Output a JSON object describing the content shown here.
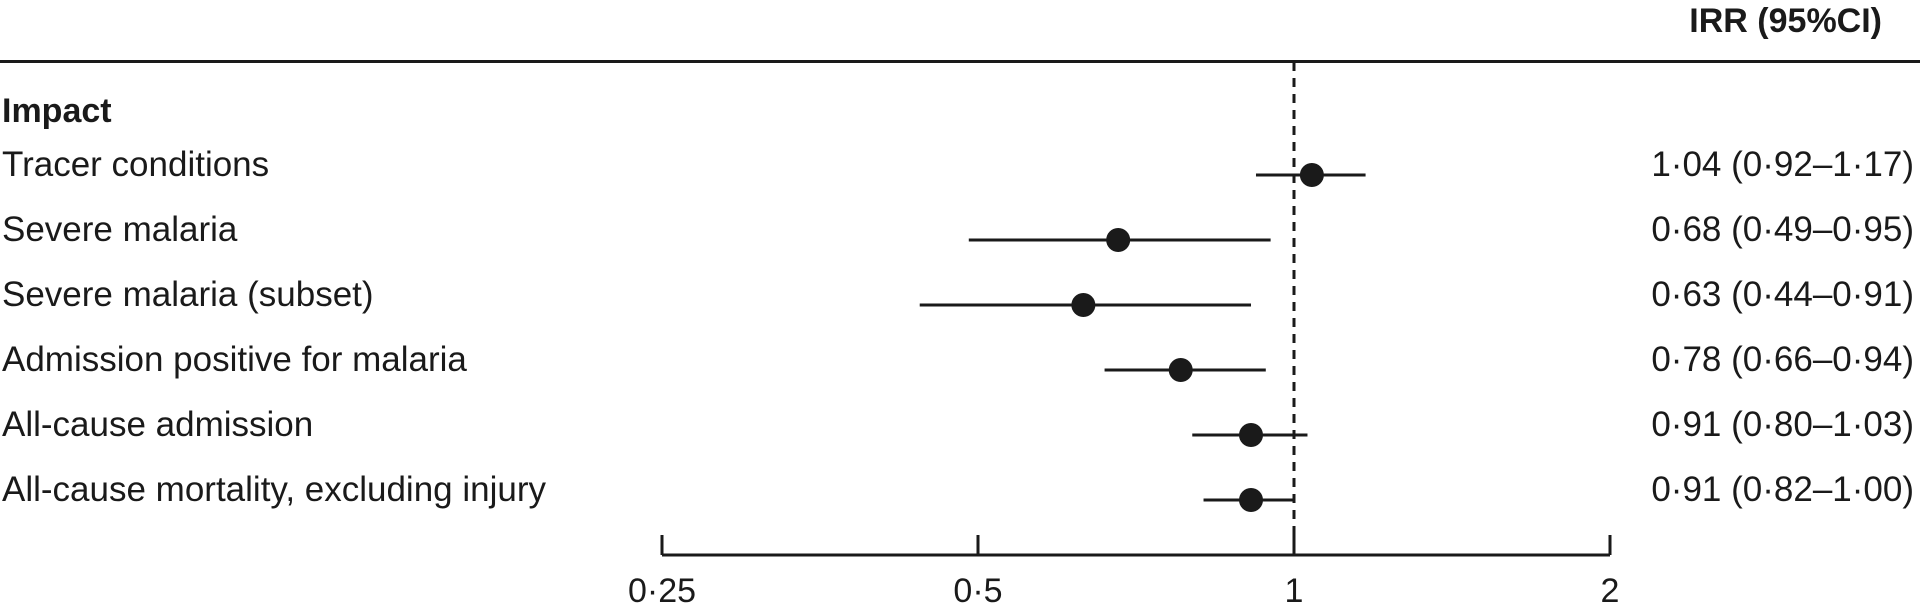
{
  "header": {
    "ci_column": "IRR (95%CI)"
  },
  "section_label": "Impact",
  "chart_data": {
    "type": "forest",
    "scale": "log",
    "reference_line": 1,
    "xlim": [
      0.25,
      2
    ],
    "ticks": [
      {
        "value": 0.25,
        "label": "0·25"
      },
      {
        "value": 0.5,
        "label": "0·5"
      },
      {
        "value": 1,
        "label": "1"
      },
      {
        "value": 2,
        "label": "2"
      }
    ],
    "rows": [
      {
        "label": "Tracer conditions",
        "irr": 1.04,
        "lo": 0.92,
        "hi": 1.17,
        "ci_text": "1·04 (0·92–1·17)"
      },
      {
        "label": "Severe malaria",
        "irr": 0.68,
        "lo": 0.49,
        "hi": 0.95,
        "ci_text": "0·68 (0·49–0·95)"
      },
      {
        "label": "Severe malaria (subset)",
        "irr": 0.63,
        "lo": 0.44,
        "hi": 0.91,
        "ci_text": "0·63 (0·44–0·91)"
      },
      {
        "label": "Admission positive for malaria",
        "irr": 0.78,
        "lo": 0.66,
        "hi": 0.94,
        "ci_text": "0·78 (0·66–0·94)"
      },
      {
        "label": "All-cause admission",
        "irr": 0.91,
        "lo": 0.8,
        "hi": 1.03,
        "ci_text": "0·91 (0·80–1·03)"
      },
      {
        "label": "All-cause mortality, excluding injury",
        "irr": 0.91,
        "lo": 0.82,
        "hi": 1.0,
        "ci_text": "0·91 (0·82–1·00)"
      }
    ]
  }
}
